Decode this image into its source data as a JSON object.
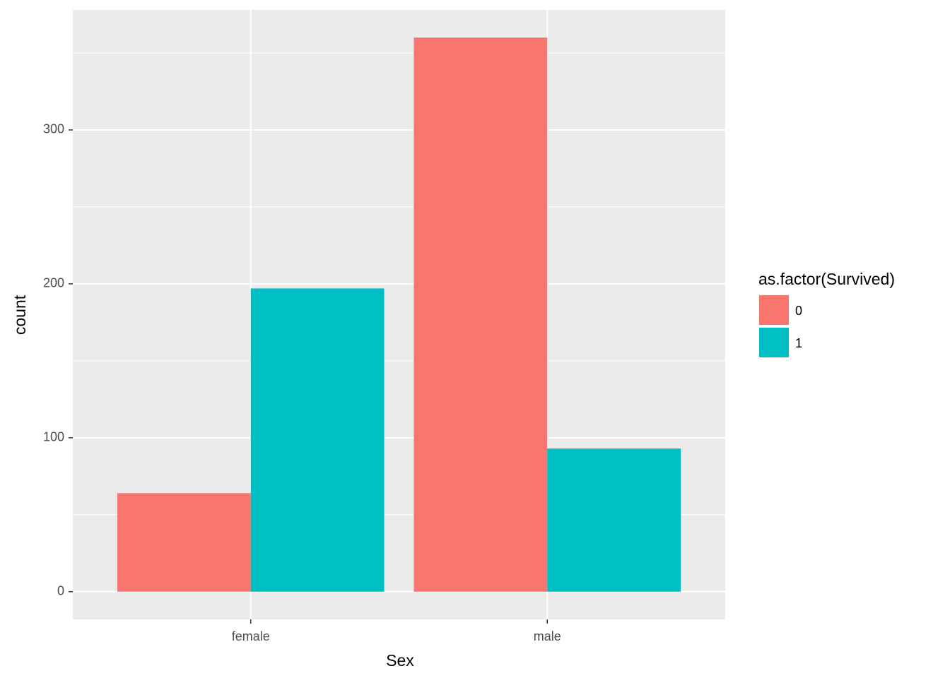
{
  "chart_data": {
    "type": "bar",
    "x_label": "Sex",
    "y_label": "count",
    "categories": [
      "female",
      "male"
    ],
    "series": [
      {
        "name": "0",
        "color": "#F8766D",
        "values": [
          64,
          360
        ]
      },
      {
        "name": "1",
        "color": "#00BFC4",
        "values": [
          197,
          93
        ]
      }
    ],
    "legend_title": "as.factor(Survived)",
    "legend": "right",
    "ylim": [
      -18,
      378
    ],
    "yticks": [
      0,
      100,
      200,
      300
    ],
    "y_minor_ticks": [
      50,
      150,
      250,
      350
    ],
    "grid": true
  }
}
